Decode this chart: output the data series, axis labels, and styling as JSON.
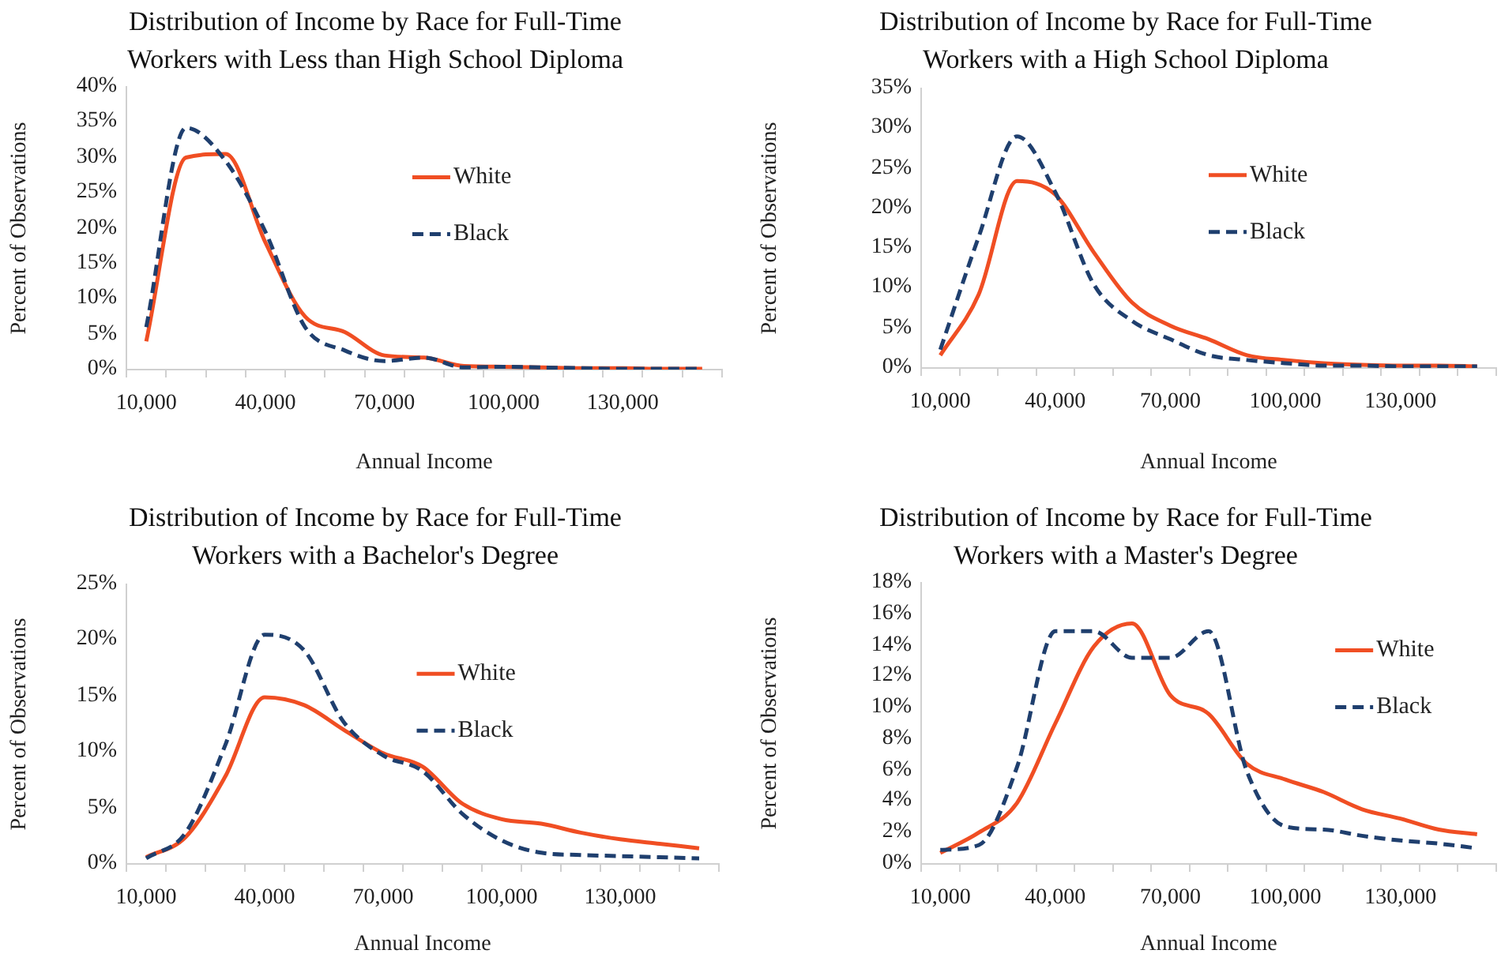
{
  "chart_data": [
    {
      "type": "line",
      "title": "Distribution of Income by Race for Full-Time Workers with Less than High School Diploma",
      "xlabel": "Annual Income",
      "ylabel": "Percent of Observations",
      "categories": [
        "10,000",
        null,
        null,
        "40,000",
        null,
        null,
        "70,000",
        null,
        null,
        "100,000",
        null,
        null,
        "130,000",
        null,
        null
      ],
      "ylim": [
        0,
        40
      ],
      "yticks": [
        {
          "value": 0,
          "label": "0%"
        },
        {
          "value": 5,
          "label": "5%"
        },
        {
          "value": 10,
          "label": "10%"
        },
        {
          "value": 15,
          "label": "15%"
        },
        {
          "value": 20,
          "label": "20%"
        },
        {
          "value": 25,
          "label": "25%"
        },
        {
          "value": 30,
          "label": "30%"
        },
        {
          "value": 35,
          "label": "35%"
        },
        {
          "value": 40,
          "label": "40%"
        }
      ],
      "grid": false,
      "legend": "right",
      "marker": "none",
      "series": [
        {
          "name": "White",
          "color": "#f04e23",
          "line_style": "solid",
          "values": [
            4,
            30,
            30.5,
            18,
            7.5,
            5.3,
            2,
            1.7,
            0.5,
            0.4,
            0.3,
            0.2,
            0.2,
            0.1,
            0.1
          ]
        },
        {
          "name": "Black",
          "color": "#1f3f6e",
          "line_style": "dashed",
          "values": [
            6,
            34.2,
            29.5,
            19.5,
            6,
            2.7,
            1.2,
            1.7,
            0.3,
            0.4,
            0.3,
            0.2,
            0.1,
            0.1,
            0.1
          ]
        }
      ]
    },
    {
      "type": "line",
      "title": "Distribution of Income by Race for Full-Time Workers with a High School Diploma",
      "xlabel": "Annual Income",
      "ylabel": "Percent of Observations",
      "categories": [
        "10,000",
        null,
        null,
        "40,000",
        null,
        null,
        "70,000",
        null,
        null,
        "100,000",
        null,
        null,
        "130,000",
        null,
        null
      ],
      "ylim": [
        0,
        35
      ],
      "yticks": [
        {
          "value": 0,
          "label": "0%"
        },
        {
          "value": 5,
          "label": "5%"
        },
        {
          "value": 10,
          "label": "10%"
        },
        {
          "value": 15,
          "label": "15%"
        },
        {
          "value": 20,
          "label": "20%"
        },
        {
          "value": 25,
          "label": "25%"
        },
        {
          "value": 30,
          "label": "30%"
        },
        {
          "value": 35,
          "label": "35%"
        }
      ],
      "grid": false,
      "legend": "right",
      "marker": "none",
      "series": [
        {
          "name": "White",
          "color": "#f04e23",
          "line_style": "solid",
          "values": [
            1.6,
            9.2,
            23.4,
            21.7,
            14.5,
            8.2,
            5.3,
            3.6,
            1.6,
            1,
            0.6,
            0.4,
            0.3,
            0.3,
            0.2
          ]
        },
        {
          "name": "Black",
          "color": "#1f3f6e",
          "line_style": "dashed",
          "values": [
            2.3,
            16.4,
            29,
            22,
            10.5,
            5.9,
            3.6,
            1.6,
            1,
            0.6,
            0.3,
            0.3,
            0.2,
            0.2,
            0.2
          ]
        }
      ]
    },
    {
      "type": "line",
      "title": "Distribution of Income by Race for Full-Time Workers with a Bachelor's Degree",
      "xlabel": "Annual Income",
      "ylabel": "Percent of Observations",
      "categories": [
        "10,000",
        null,
        null,
        "40,000",
        null,
        null,
        "70,000",
        null,
        null,
        "100,000",
        null,
        null,
        "130,000",
        null,
        null
      ],
      "ylim": [
        0,
        25
      ],
      "yticks": [
        {
          "value": 0,
          "label": "0%"
        },
        {
          "value": 5,
          "label": "5%"
        },
        {
          "value": 10,
          "label": "10%"
        },
        {
          "value": 15,
          "label": "15%"
        },
        {
          "value": 20,
          "label": "20%"
        },
        {
          "value": 25,
          "label": "25%"
        }
      ],
      "grid": false,
      "legend": "right",
      "marker": "none",
      "series": [
        {
          "name": "White",
          "color": "#f04e23",
          "line_style": "solid",
          "values": [
            0.6,
            2.4,
            7.8,
            14.9,
            14.2,
            12,
            9.9,
            8.7,
            5.4,
            4,
            3.6,
            2.8,
            2.2,
            1.8,
            1.4
          ]
        },
        {
          "name": "Black",
          "color": "#1f3f6e",
          "line_style": "dashed",
          "values": [
            0.5,
            2.8,
            10.6,
            20.5,
            19.1,
            12.7,
            9.7,
            8.3,
            4.5,
            2.1,
            1,
            0.8,
            0.7,
            0.6,
            0.5
          ]
        }
      ]
    },
    {
      "type": "line",
      "title": "Distribution of Income by Race for Full-Time Workers with a Master's Degree",
      "xlabel": "Annual Income",
      "ylabel": "Percent of Observations",
      "categories": [
        "10,000",
        null,
        null,
        "40,000",
        null,
        null,
        "70,000",
        null,
        null,
        "100,000",
        null,
        null,
        "130,000",
        null,
        null
      ],
      "ylim": [
        0,
        18
      ],
      "yticks": [
        {
          "value": 0,
          "label": "0%"
        },
        {
          "value": 2,
          "label": "2%"
        },
        {
          "value": 4,
          "label": "4%"
        },
        {
          "value": 6,
          "label": "6%"
        },
        {
          "value": 8,
          "label": "8%"
        },
        {
          "value": 10,
          "label": "10%"
        },
        {
          "value": 12,
          "label": "12%"
        },
        {
          "value": 14,
          "label": "14%"
        },
        {
          "value": 16,
          "label": "16%"
        },
        {
          "value": 18,
          "label": "18%"
        }
      ],
      "grid": false,
      "legend": "right",
      "marker": "none",
      "series": [
        {
          "name": "White",
          "color": "#f04e23",
          "line_style": "solid",
          "values": [
            0.7,
            2,
            3.9,
            9,
            13.9,
            15.4,
            10.8,
            9.6,
            6.4,
            5.4,
            4.6,
            3.5,
            2.9,
            2.2,
            1.9
          ]
        },
        {
          "name": "Black",
          "color": "#1f3f6e",
          "line_style": "dashed",
          "values": [
            0.9,
            1.2,
            6.2,
            14.9,
            14.9,
            13.2,
            13.2,
            14.9,
            5.9,
            2.4,
            2.2,
            1.8,
            1.5,
            1.3,
            1
          ]
        }
      ]
    }
  ]
}
